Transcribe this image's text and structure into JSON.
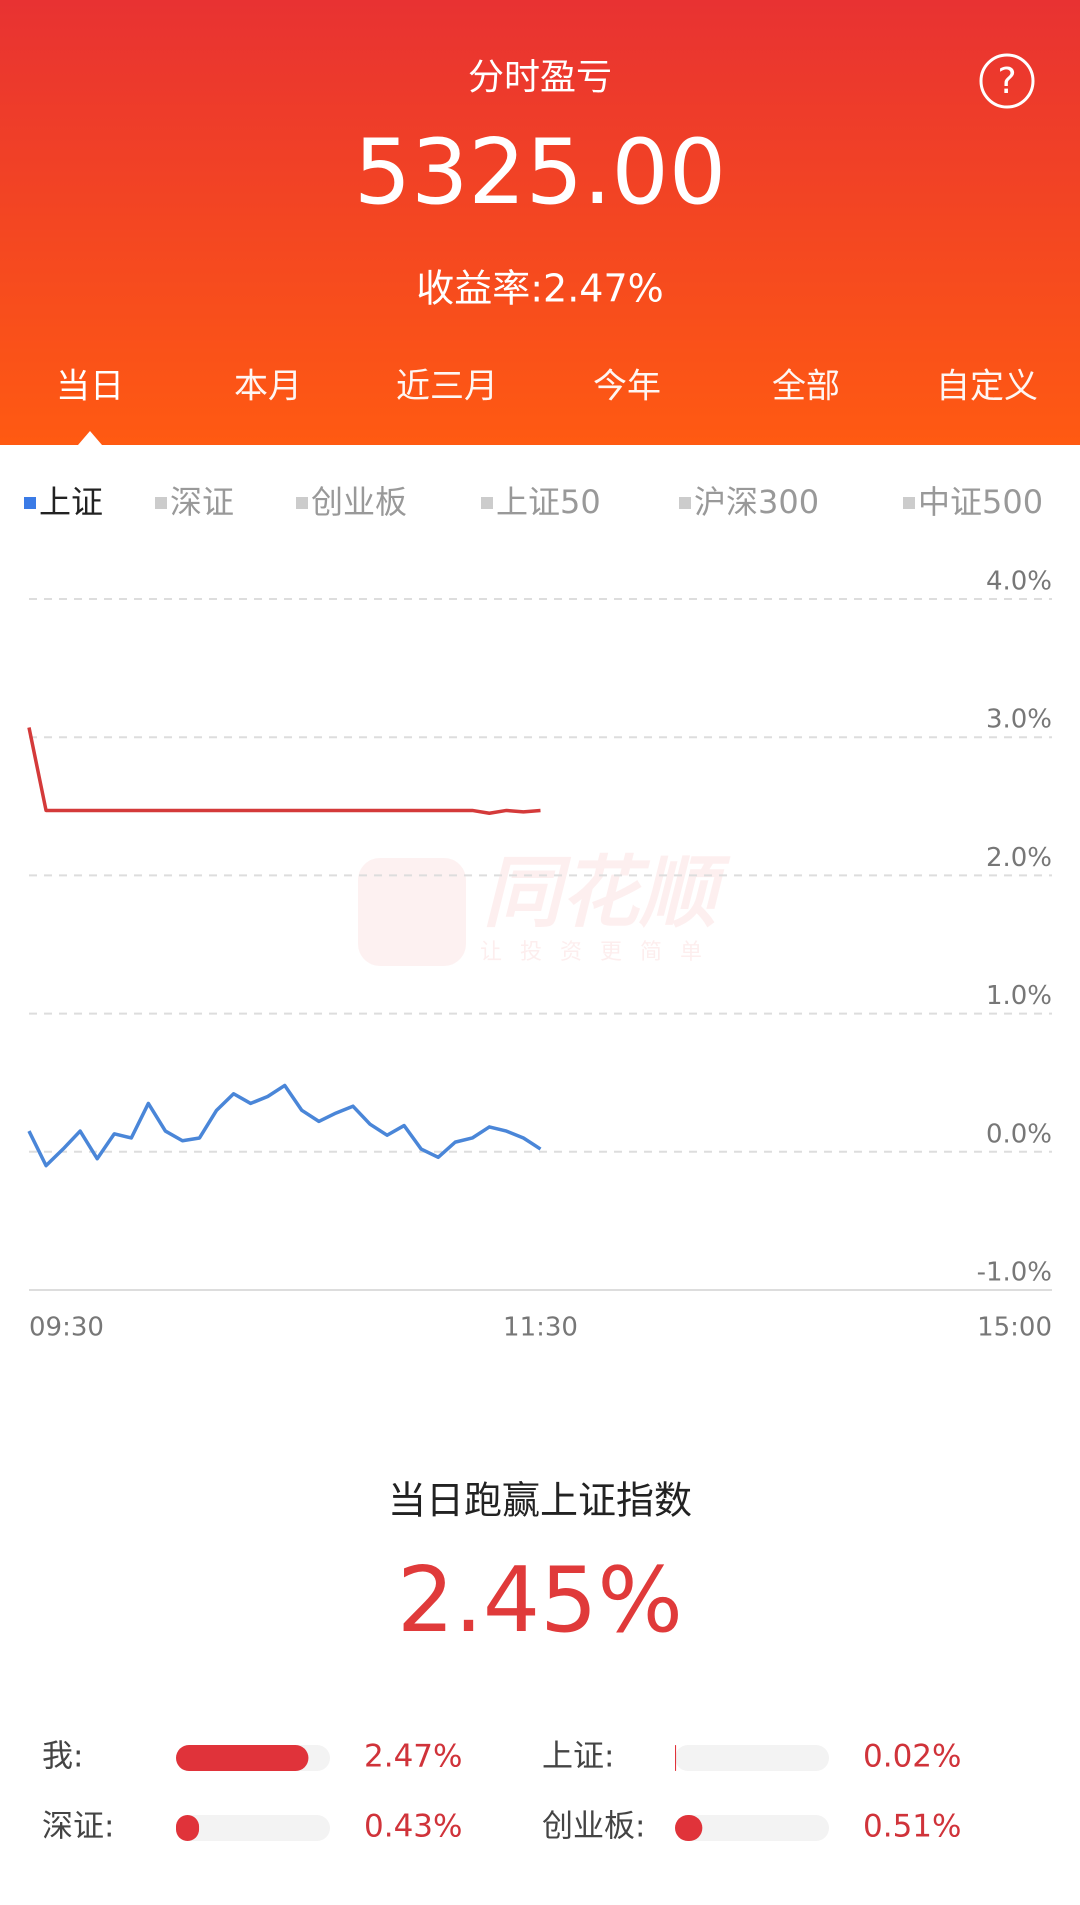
{
  "header": {
    "title": "分时盈亏",
    "value": "5325.00",
    "return_rate": "收益率:2.47%"
  },
  "tabs": [
    "当日",
    "本月",
    "近三月",
    "今年",
    "全部",
    "自定义"
  ],
  "legend": [
    {
      "name": "上证",
      "color": "#3b7be6"
    },
    {
      "name": "深证",
      "color": "#cccccc"
    },
    {
      "name": "创业板",
      "color": "#cccccc"
    },
    {
      "name": "上证50",
      "color": "#cccccc"
    },
    {
      "name": "沪深300",
      "color": "#cccccc"
    },
    {
      "name": "中证500",
      "color": "#cccccc"
    }
  ],
  "watermark": {
    "brand": "同花顺",
    "slogan": "让投资更简单"
  },
  "chart_data": {
    "type": "line",
    "x": [
      0,
      4,
      8,
      12,
      16,
      20,
      24,
      28,
      32,
      36,
      40,
      44,
      48,
      52,
      56,
      60,
      64,
      68,
      72,
      76,
      80,
      84,
      88,
      92,
      96,
      100,
      104,
      108,
      112,
      116,
      120
    ],
    "xlim": [
      0,
      240
    ],
    "xticks": [
      {
        "value": 0,
        "label": "09:30"
      },
      {
        "value": 120,
        "label": "11:30"
      },
      {
        "value": 240,
        "label": "15:00"
      }
    ],
    "ylim": [
      -1,
      4
    ],
    "yticks": [
      {
        "value": 4,
        "label": "4.0%"
      },
      {
        "value": 3,
        "label": "3.0%"
      },
      {
        "value": 2,
        "label": "2.0%"
      },
      {
        "value": 1,
        "label": "1.0%"
      },
      {
        "value": 0,
        "label": "0.0%"
      },
      {
        "value": -1,
        "label": "-1.0%"
      }
    ],
    "grid": true,
    "series": [
      {
        "color": "#d43a3a",
        "values": [
          3.07,
          2.47,
          2.47,
          2.47,
          2.47,
          2.47,
          2.47,
          2.47,
          2.47,
          2.47,
          2.47,
          2.47,
          2.47,
          2.47,
          2.47,
          2.47,
          2.47,
          2.47,
          2.47,
          2.47,
          2.47,
          2.47,
          2.47,
          2.47,
          2.47,
          2.47,
          2.47,
          2.45,
          2.47,
          2.46,
          2.47
        ]
      },
      {
        "color": "#4a86d8",
        "values": [
          0.15,
          -0.1,
          0.02,
          0.15,
          -0.05,
          0.13,
          0.1,
          0.35,
          0.15,
          0.08,
          0.1,
          0.3,
          0.42,
          0.35,
          0.4,
          0.48,
          0.3,
          0.22,
          0.28,
          0.33,
          0.2,
          0.12,
          0.19,
          0.02,
          -0.04,
          0.07,
          0.1,
          0.18,
          0.15,
          0.1,
          0.02
        ]
      }
    ]
  },
  "summary": {
    "label": "当日跑赢上证指数",
    "value": "2.45%"
  },
  "comparisons": [
    {
      "label": "我:",
      "value": 2.47,
      "value_label": "2.47%"
    },
    {
      "label": "上证:",
      "value": 0.02,
      "value_label": "0.02%"
    },
    {
      "label": "深证:",
      "value": 0.43,
      "value_label": "0.43%"
    },
    {
      "label": "创业板:",
      "value": 0.51,
      "value_label": "0.51%"
    }
  ]
}
